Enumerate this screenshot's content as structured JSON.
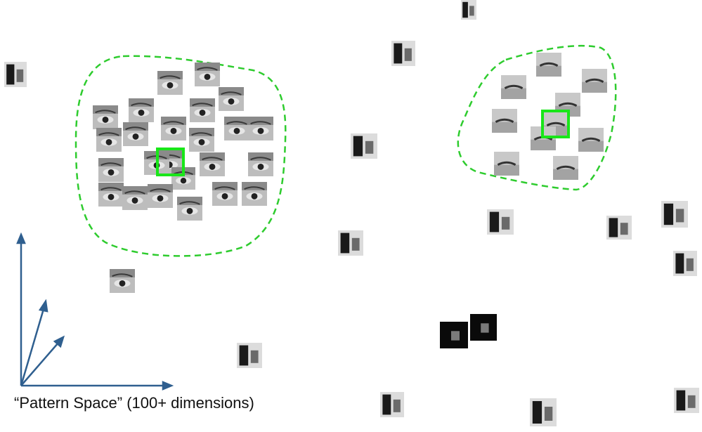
{
  "caption": "“Pattern Space” (100+ dimensions)",
  "colors": {
    "cluster_outline": "#2ecc2e",
    "selection_box": "#19e619",
    "axis": "#2f5f8f"
  },
  "icons": {
    "eye_patch": "eye-icon",
    "mouth_patch": "mouth-icon",
    "random_patch": "image-patch-icon"
  }
}
